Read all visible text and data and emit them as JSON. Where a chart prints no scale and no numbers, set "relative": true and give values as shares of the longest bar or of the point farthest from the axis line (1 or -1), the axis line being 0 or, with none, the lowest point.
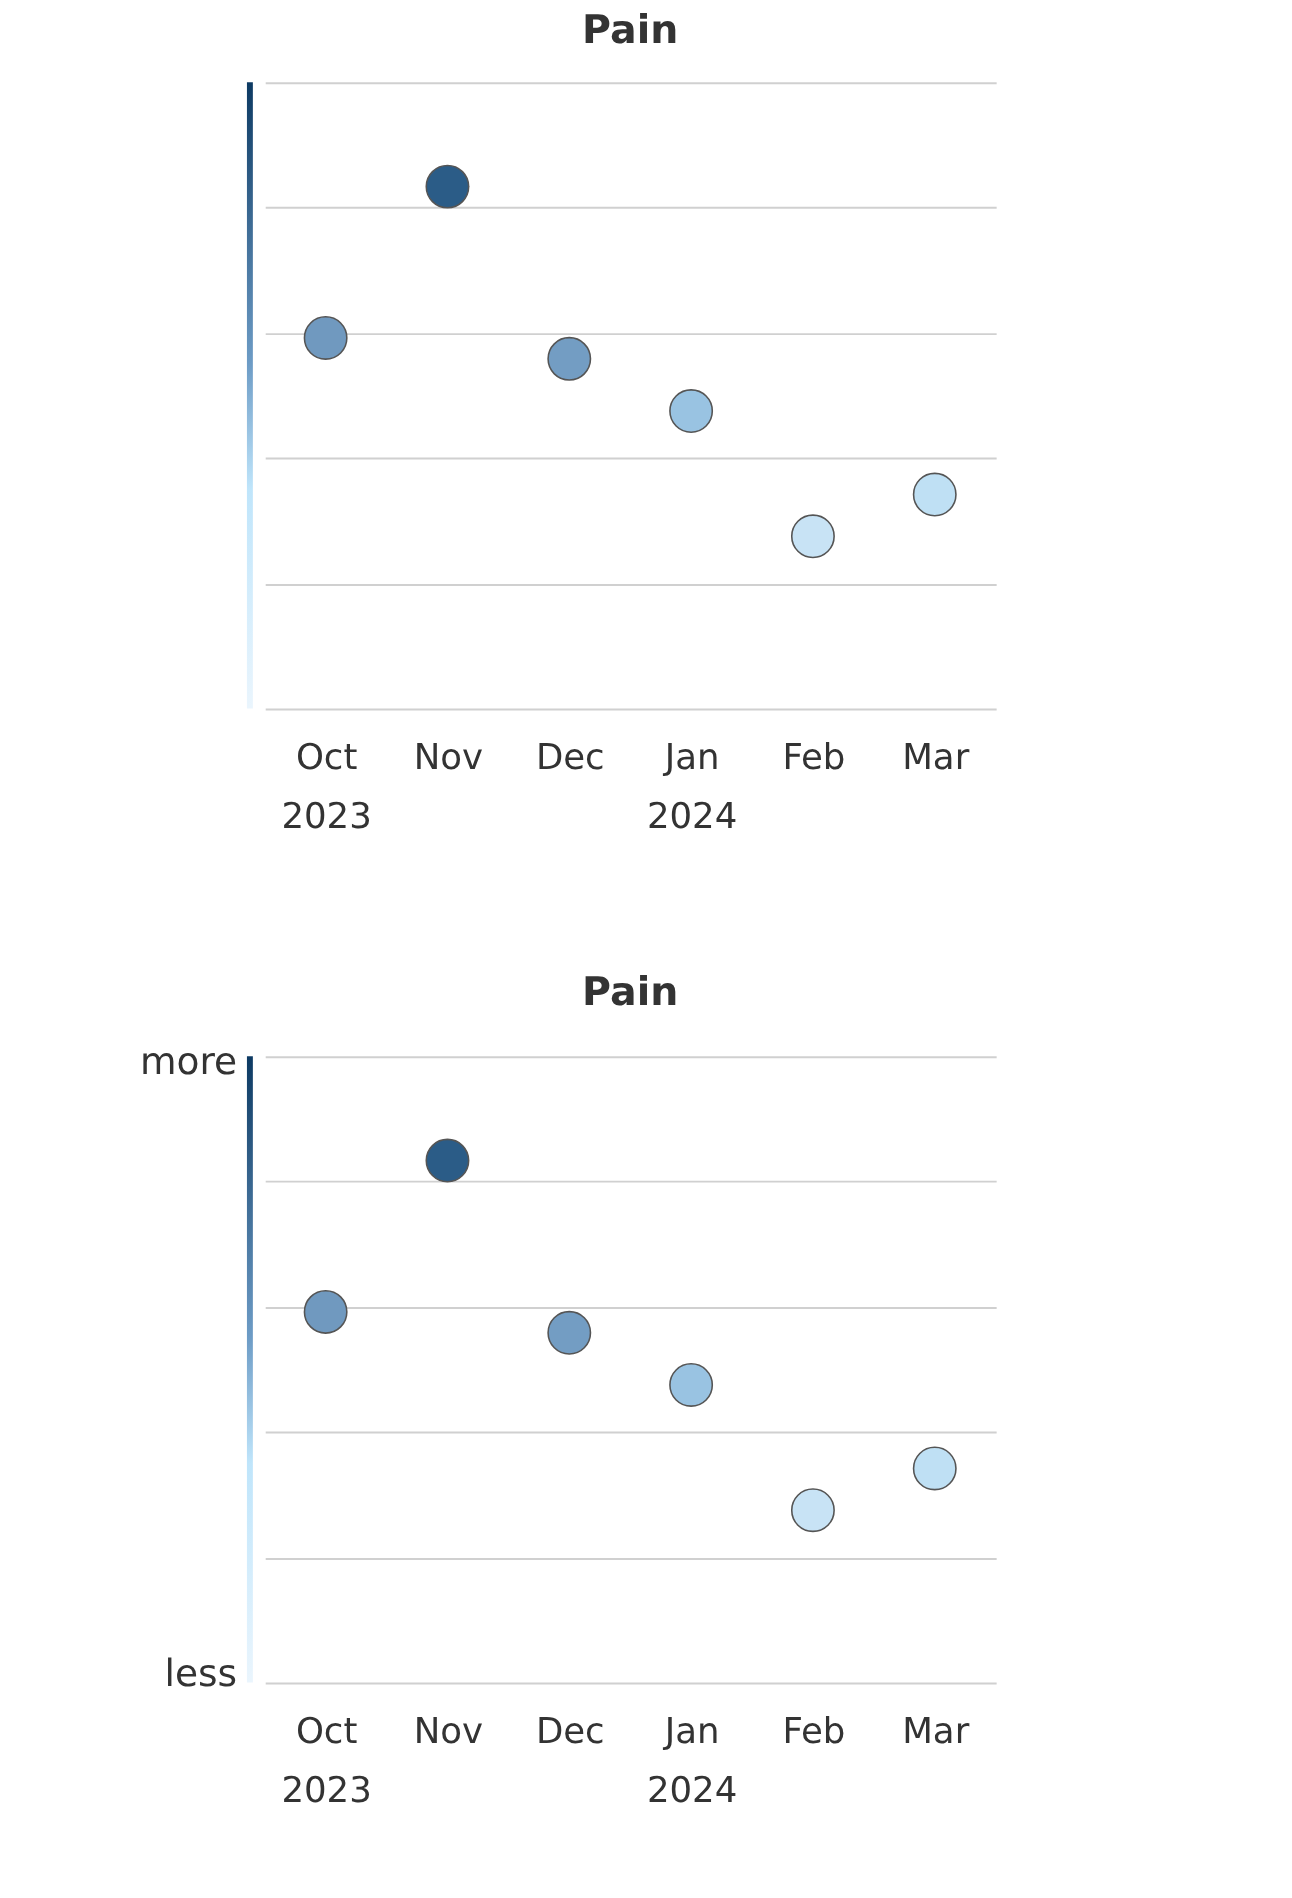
{
  "chart_data": [
    {
      "type": "scatter",
      "title": "Pain",
      "relative": true,
      "grid": "y",
      "marker": "circle",
      "categories": [
        "Oct\n2023",
        "Nov",
        "Dec",
        "Jan\n2024",
        "Feb",
        "Mar"
      ],
      "values": [
        0.71,
        1,
        0.67,
        0.57,
        0.33,
        0.41
      ],
      "colors": [
        "#7099bf",
        "#2b5c87",
        "#739dc3",
        "#99c3e2",
        "#c8e3f5",
        "#bfe0f4"
      ]
    },
    {
      "type": "scatter",
      "title": "Pain",
      "relative": true,
      "grid": "y",
      "marker": "circle",
      "categories": [
        "Oct\n2023",
        "Nov",
        "Dec",
        "Jan\n2024",
        "Feb",
        "Mar"
      ],
      "values": [
        0.71,
        1,
        0.67,
        0.57,
        0.33,
        0.41
      ],
      "colors": [
        "#7099bf",
        "#2b5c87",
        "#739dc3",
        "#99c3e2",
        "#c8e3f5",
        "#bfe0f4"
      ],
      "annotations": [
        "more",
        "less"
      ]
    }
  ]
}
